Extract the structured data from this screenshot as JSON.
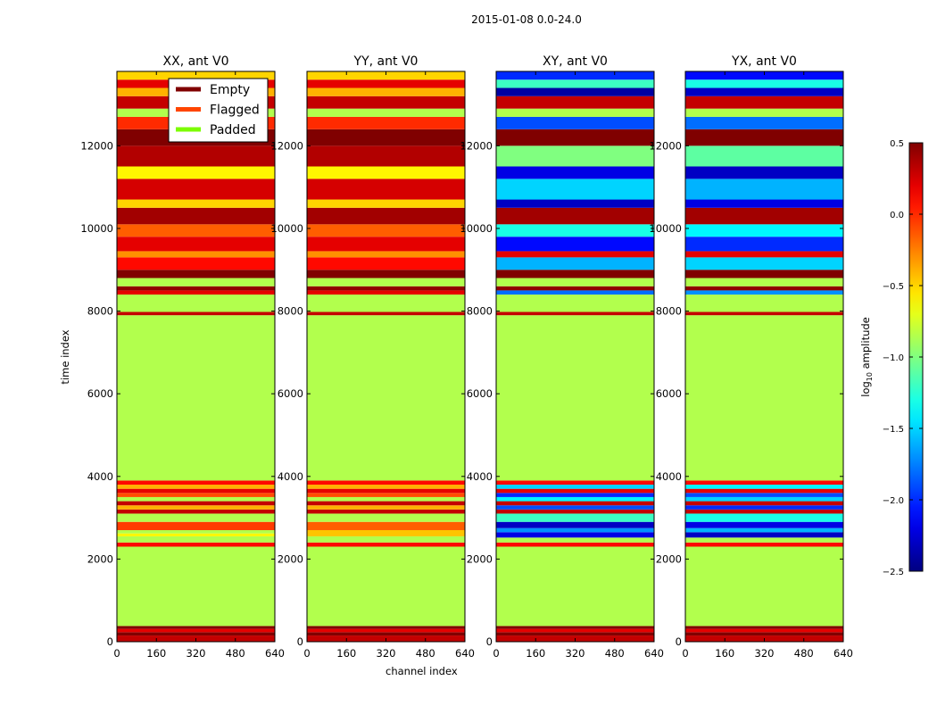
{
  "figure_title": "2015-01-08 0.0-24.0",
  "chart_data": {
    "type": "heatmap",
    "suptitle": "2015-01-08 0.0-24.0",
    "xlabel": "channel index",
    "ylabel": "time index",
    "xlim": [
      0,
      640
    ],
    "ylim": [
      0,
      13800
    ],
    "xticks": [
      0,
      160,
      320,
      480,
      640
    ],
    "yticks": [
      0,
      2000,
      4000,
      6000,
      8000,
      10000,
      12000
    ],
    "legend": {
      "placement": "top-right of first panel",
      "entries": [
        {
          "label": "Empty",
          "color": "#800000"
        },
        {
          "label": "Flagged",
          "color": "#ff4500"
        },
        {
          "label": "Padded",
          "color": "#7cfc00"
        }
      ]
    },
    "colorbar": {
      "label_base": "log",
      "label_sub": "10",
      "label_rest": " amplitude",
      "range": [
        -2.5,
        0.5
      ],
      "ticks": [
        -2.5,
        -2.0,
        -1.5,
        -1.0,
        -0.5,
        0.0,
        0.5
      ],
      "tick_labels": [
        "−2.5",
        "−2.0",
        "−1.5",
        "−1.0",
        "−0.5",
        "0.0",
        "0.5"
      ],
      "colormap": "jet"
    },
    "panels": [
      {
        "title": "XX, ant V0",
        "bands": [
          {
            "t0": 0,
            "t1": 150,
            "v": 0.3
          },
          {
            "t0": 150,
            "t1": 230,
            "v": 0.5
          },
          {
            "t0": 230,
            "t1": 310,
            "v": 0.2
          },
          {
            "t0": 310,
            "t1": 380,
            "v": 0.5
          },
          {
            "t0": 380,
            "t1": 2300,
            "v": -0.85
          },
          {
            "t0": 2300,
            "t1": 2400,
            "v": 0.1
          },
          {
            "t0": 2400,
            "t1": 2550,
            "v": -0.85
          },
          {
            "t0": 2550,
            "t1": 2620,
            "v": -0.6
          },
          {
            "t0": 2620,
            "t1": 2700,
            "v": -0.85
          },
          {
            "t0": 2700,
            "t1": 2900,
            "v": -0.05
          },
          {
            "t0": 2900,
            "t1": 3100,
            "v": -0.85
          },
          {
            "t0": 3100,
            "t1": 3200,
            "v": 0.3
          },
          {
            "t0": 3200,
            "t1": 3300,
            "v": -0.4
          },
          {
            "t0": 3300,
            "t1": 3400,
            "v": 0.3
          },
          {
            "t0": 3400,
            "t1": 3500,
            "v": -0.85
          },
          {
            "t0": 3500,
            "t1": 3600,
            "v": -0.1
          },
          {
            "t0": 3600,
            "t1": 3700,
            "v": 0.2
          },
          {
            "t0": 3700,
            "t1": 3800,
            "v": -0.4
          },
          {
            "t0": 3800,
            "t1": 3900,
            "v": 0.1
          },
          {
            "t0": 3900,
            "t1": 7900,
            "v": -0.85
          },
          {
            "t0": 7900,
            "t1": 7980,
            "v": 0.3
          },
          {
            "t0": 7980,
            "t1": 8400,
            "v": -0.85
          },
          {
            "t0": 8400,
            "t1": 8500,
            "v": 0.2
          },
          {
            "t0": 8500,
            "t1": 8600,
            "v": 0.45
          },
          {
            "t0": 8600,
            "t1": 8800,
            "v": -0.85
          },
          {
            "t0": 8800,
            "t1": 9000,
            "v": 0.5
          },
          {
            "t0": 9000,
            "t1": 9300,
            "v": 0.1
          },
          {
            "t0": 9300,
            "t1": 9450,
            "v": -0.3
          },
          {
            "t0": 9450,
            "t1": 9800,
            "v": 0.2
          },
          {
            "t0": 9800,
            "t1": 10100,
            "v": -0.15
          },
          {
            "t0": 10100,
            "t1": 10500,
            "v": 0.4
          },
          {
            "t0": 10500,
            "t1": 10700,
            "v": -0.5
          },
          {
            "t0": 10700,
            "t1": 11200,
            "v": 0.25
          },
          {
            "t0": 11200,
            "t1": 11500,
            "v": -0.6
          },
          {
            "t0": 11500,
            "t1": 12000,
            "v": 0.35
          },
          {
            "t0": 12000,
            "t1": 12400,
            "v": 0.5
          },
          {
            "t0": 12400,
            "t1": 12700,
            "v": 0.0
          },
          {
            "t0": 12700,
            "t1": 12900,
            "v": -0.85
          },
          {
            "t0": 12900,
            "t1": 13200,
            "v": 0.3
          },
          {
            "t0": 13200,
            "t1": 13400,
            "v": -0.4
          },
          {
            "t0": 13400,
            "t1": 13600,
            "v": 0.2
          },
          {
            "t0": 13600,
            "t1": 13800,
            "v": -0.5
          }
        ]
      },
      {
        "title": "YY, ant V0",
        "bands": [
          {
            "t0": 0,
            "t1": 150,
            "v": 0.3
          },
          {
            "t0": 150,
            "t1": 230,
            "v": 0.5
          },
          {
            "t0": 230,
            "t1": 310,
            "v": 0.2
          },
          {
            "t0": 310,
            "t1": 380,
            "v": 0.5
          },
          {
            "t0": 380,
            "t1": 2300,
            "v": -0.85
          },
          {
            "t0": 2300,
            "t1": 2400,
            "v": 0.1
          },
          {
            "t0": 2400,
            "t1": 2550,
            "v": -0.85
          },
          {
            "t0": 2550,
            "t1": 2700,
            "v": -0.45
          },
          {
            "t0": 2700,
            "t1": 2900,
            "v": -0.15
          },
          {
            "t0": 2900,
            "t1": 3100,
            "v": -0.85
          },
          {
            "t0": 3100,
            "t1": 3200,
            "v": 0.3
          },
          {
            "t0": 3200,
            "t1": 3300,
            "v": -0.4
          },
          {
            "t0": 3300,
            "t1": 3400,
            "v": 0.3
          },
          {
            "t0": 3400,
            "t1": 3500,
            "v": -0.85
          },
          {
            "t0": 3500,
            "t1": 3600,
            "v": -0.1
          },
          {
            "t0": 3600,
            "t1": 3700,
            "v": 0.2
          },
          {
            "t0": 3700,
            "t1": 3800,
            "v": -0.4
          },
          {
            "t0": 3800,
            "t1": 3900,
            "v": 0.1
          },
          {
            "t0": 3900,
            "t1": 7900,
            "v": -0.85
          },
          {
            "t0": 7900,
            "t1": 7980,
            "v": 0.3
          },
          {
            "t0": 7980,
            "t1": 8400,
            "v": -0.85
          },
          {
            "t0": 8400,
            "t1": 8500,
            "v": 0.2
          },
          {
            "t0": 8500,
            "t1": 8600,
            "v": 0.45
          },
          {
            "t0": 8600,
            "t1": 8800,
            "v": -0.85
          },
          {
            "t0": 8800,
            "t1": 9000,
            "v": 0.5
          },
          {
            "t0": 9000,
            "t1": 9300,
            "v": 0.1
          },
          {
            "t0": 9300,
            "t1": 9450,
            "v": -0.3
          },
          {
            "t0": 9450,
            "t1": 9800,
            "v": 0.2
          },
          {
            "t0": 9800,
            "t1": 10100,
            "v": -0.15
          },
          {
            "t0": 10100,
            "t1": 10500,
            "v": 0.4
          },
          {
            "t0": 10500,
            "t1": 10700,
            "v": -0.5
          },
          {
            "t0": 10700,
            "t1": 11200,
            "v": 0.25
          },
          {
            "t0": 11200,
            "t1": 11500,
            "v": -0.6
          },
          {
            "t0": 11500,
            "t1": 12000,
            "v": 0.35
          },
          {
            "t0": 12000,
            "t1": 12400,
            "v": 0.5
          },
          {
            "t0": 12400,
            "t1": 12700,
            "v": 0.0
          },
          {
            "t0": 12700,
            "t1": 12900,
            "v": -0.85
          },
          {
            "t0": 12900,
            "t1": 13200,
            "v": 0.3
          },
          {
            "t0": 13200,
            "t1": 13400,
            "v": -0.4
          },
          {
            "t0": 13400,
            "t1": 13600,
            "v": 0.2
          },
          {
            "t0": 13600,
            "t1": 13800,
            "v": -0.5
          }
        ]
      },
      {
        "title": "XY, ant V0",
        "bands": [
          {
            "t0": 0,
            "t1": 150,
            "v": 0.3
          },
          {
            "t0": 150,
            "t1": 230,
            "v": 0.5
          },
          {
            "t0": 230,
            "t1": 310,
            "v": 0.2
          },
          {
            "t0": 310,
            "t1": 380,
            "v": 0.5
          },
          {
            "t0": 380,
            "t1": 2300,
            "v": -0.85
          },
          {
            "t0": 2300,
            "t1": 2400,
            "v": 0.1
          },
          {
            "t0": 2400,
            "t1": 2520,
            "v": -0.85
          },
          {
            "t0": 2520,
            "t1": 2650,
            "v": -2.2
          },
          {
            "t0": 2650,
            "t1": 2750,
            "v": -1.7
          },
          {
            "t0": 2750,
            "t1": 2900,
            "v": -2.3
          },
          {
            "t0": 2900,
            "t1": 3100,
            "v": -1.2
          },
          {
            "t0": 3100,
            "t1": 3200,
            "v": 0.3
          },
          {
            "t0": 3200,
            "t1": 3300,
            "v": -1.9
          },
          {
            "t0": 3300,
            "t1": 3400,
            "v": 0.3
          },
          {
            "t0": 3400,
            "t1": 3500,
            "v": -1.4
          },
          {
            "t0": 3500,
            "t1": 3600,
            "v": -2.0
          },
          {
            "t0": 3600,
            "t1": 3700,
            "v": 0.2
          },
          {
            "t0": 3700,
            "t1": 3800,
            "v": -1.5
          },
          {
            "t0": 3800,
            "t1": 3900,
            "v": 0.1
          },
          {
            "t0": 3900,
            "t1": 7900,
            "v": -0.85
          },
          {
            "t0": 7900,
            "t1": 7980,
            "v": 0.3
          },
          {
            "t0": 7980,
            "t1": 8400,
            "v": -0.85
          },
          {
            "t0": 8400,
            "t1": 8500,
            "v": -1.8
          },
          {
            "t0": 8500,
            "t1": 8600,
            "v": 0.45
          },
          {
            "t0": 8600,
            "t1": 8800,
            "v": -0.85
          },
          {
            "t0": 8800,
            "t1": 9000,
            "v": 0.5
          },
          {
            "t0": 9000,
            "t1": 9300,
            "v": -1.6
          },
          {
            "t0": 9300,
            "t1": 9450,
            "v": 0.2
          },
          {
            "t0": 9450,
            "t1": 9800,
            "v": -2.1
          },
          {
            "t0": 9800,
            "t1": 10100,
            "v": -1.3
          },
          {
            "t0": 10100,
            "t1": 10500,
            "v": 0.4
          },
          {
            "t0": 10500,
            "t1": 10700,
            "v": -2.3
          },
          {
            "t0": 10700,
            "t1": 11200,
            "v": -1.5
          },
          {
            "t0": 11200,
            "t1": 11500,
            "v": -2.2
          },
          {
            "t0": 11500,
            "t1": 12000,
            "v": -1.0
          },
          {
            "t0": 12000,
            "t1": 12400,
            "v": 0.5
          },
          {
            "t0": 12400,
            "t1": 12700,
            "v": -1.9
          },
          {
            "t0": 12700,
            "t1": 12900,
            "v": -0.85
          },
          {
            "t0": 12900,
            "t1": 13200,
            "v": 0.3
          },
          {
            "t0": 13200,
            "t1": 13400,
            "v": -2.4
          },
          {
            "t0": 13400,
            "t1": 13600,
            "v": -1.2
          },
          {
            "t0": 13600,
            "t1": 13800,
            "v": -2.0
          }
        ]
      },
      {
        "title": "YX, ant V0",
        "bands": [
          {
            "t0": 0,
            "t1": 150,
            "v": 0.3
          },
          {
            "t0": 150,
            "t1": 230,
            "v": 0.5
          },
          {
            "t0": 230,
            "t1": 310,
            "v": 0.2
          },
          {
            "t0": 310,
            "t1": 380,
            "v": 0.5
          },
          {
            "t0": 380,
            "t1": 2300,
            "v": -0.85
          },
          {
            "t0": 2300,
            "t1": 2400,
            "v": 0.1
          },
          {
            "t0": 2400,
            "t1": 2520,
            "v": -0.85
          },
          {
            "t0": 2520,
            "t1": 2650,
            "v": -2.3
          },
          {
            "t0": 2650,
            "t1": 2750,
            "v": -1.6
          },
          {
            "t0": 2750,
            "t1": 2900,
            "v": -2.2
          },
          {
            "t0": 2900,
            "t1": 3100,
            "v": -1.3
          },
          {
            "t0": 3100,
            "t1": 3200,
            "v": 0.3
          },
          {
            "t0": 3200,
            "t1": 3300,
            "v": -2.0
          },
          {
            "t0": 3300,
            "t1": 3400,
            "v": 0.3
          },
          {
            "t0": 3400,
            "t1": 3500,
            "v": -1.5
          },
          {
            "t0": 3500,
            "t1": 3600,
            "v": -1.9
          },
          {
            "t0": 3600,
            "t1": 3700,
            "v": 0.2
          },
          {
            "t0": 3700,
            "t1": 3800,
            "v": -1.4
          },
          {
            "t0": 3800,
            "t1": 3900,
            "v": 0.1
          },
          {
            "t0": 3900,
            "t1": 7900,
            "v": -0.85
          },
          {
            "t0": 7900,
            "t1": 7980,
            "v": 0.3
          },
          {
            "t0": 7980,
            "t1": 8400,
            "v": -0.85
          },
          {
            "t0": 8400,
            "t1": 8500,
            "v": -1.7
          },
          {
            "t0": 8500,
            "t1": 8600,
            "v": 0.45
          },
          {
            "t0": 8600,
            "t1": 8800,
            "v": -0.85
          },
          {
            "t0": 8800,
            "t1": 9000,
            "v": 0.5
          },
          {
            "t0": 9000,
            "t1": 9300,
            "v": -1.5
          },
          {
            "t0": 9300,
            "t1": 9450,
            "v": 0.2
          },
          {
            "t0": 9450,
            "t1": 9800,
            "v": -2.0
          },
          {
            "t0": 9800,
            "t1": 10100,
            "v": -1.4
          },
          {
            "t0": 10100,
            "t1": 10500,
            "v": 0.4
          },
          {
            "t0": 10500,
            "t1": 10700,
            "v": -2.2
          },
          {
            "t0": 10700,
            "t1": 11200,
            "v": -1.6
          },
          {
            "t0": 11200,
            "t1": 11500,
            "v": -2.3
          },
          {
            "t0": 11500,
            "t1": 12000,
            "v": -1.1
          },
          {
            "t0": 12000,
            "t1": 12400,
            "v": 0.5
          },
          {
            "t0": 12400,
            "t1": 12700,
            "v": -1.8
          },
          {
            "t0": 12700,
            "t1": 12900,
            "v": -0.85
          },
          {
            "t0": 12900,
            "t1": 13200,
            "v": 0.3
          },
          {
            "t0": 13200,
            "t1": 13400,
            "v": -2.3
          },
          {
            "t0": 13400,
            "t1": 13600,
            "v": -1.3
          },
          {
            "t0": 13600,
            "t1": 13800,
            "v": -2.1
          }
        ]
      }
    ]
  }
}
